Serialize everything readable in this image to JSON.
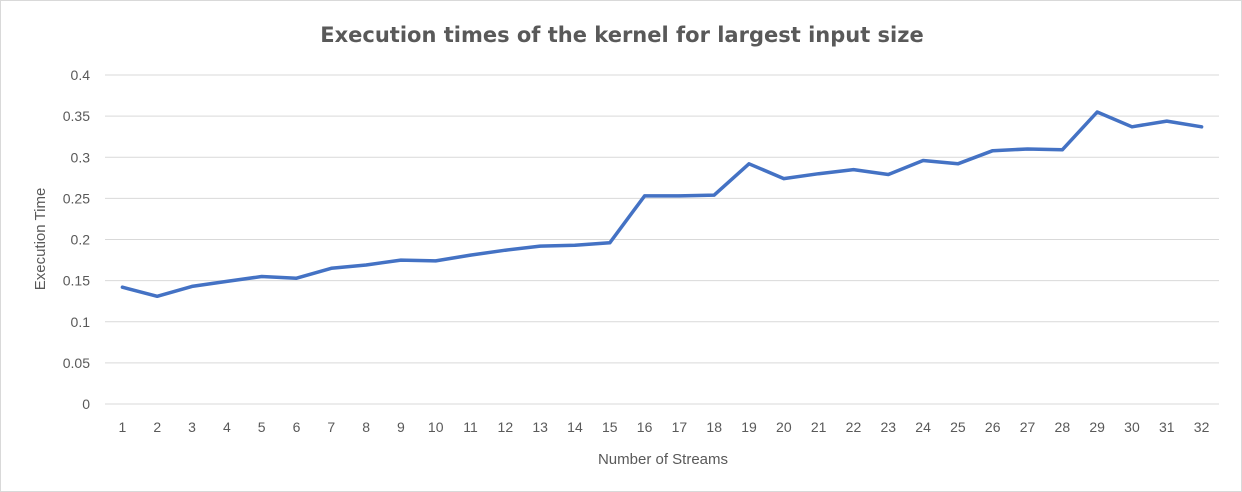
{
  "chart_data": {
    "type": "line",
    "title": "Execution times of the kernel for largest input size",
    "xlabel": "Number of Streams",
    "ylabel": "Execution Time",
    "categories": [
      "1",
      "2",
      "3",
      "4",
      "5",
      "6",
      "7",
      "8",
      "9",
      "10",
      "11",
      "12",
      "13",
      "14",
      "15",
      "16",
      "17",
      "18",
      "19",
      "20",
      "21",
      "22",
      "23",
      "24",
      "25",
      "26",
      "27",
      "28",
      "29",
      "30",
      "31",
      "32"
    ],
    "series": [
      {
        "values": [
          0.142,
          0.131,
          0.143,
          0.149,
          0.155,
          0.153,
          0.165,
          0.169,
          0.175,
          0.174,
          0.181,
          0.187,
          0.192,
          0.193,
          0.196,
          0.253,
          0.253,
          0.254,
          0.292,
          0.274,
          0.28,
          0.285,
          0.279,
          0.296,
          0.292,
          0.308,
          0.31,
          0.309,
          0.355,
          0.337,
          0.344,
          0.337
        ],
        "color": "#4472c4"
      }
    ],
    "y_ticks": [
      "0",
      "0.05",
      "0.1",
      "0.15",
      "0.2",
      "0.25",
      "0.3",
      "0.35",
      "0.4"
    ],
    "ylim": [
      0,
      0.4
    ],
    "grid": "horizontal",
    "legend": "none"
  }
}
